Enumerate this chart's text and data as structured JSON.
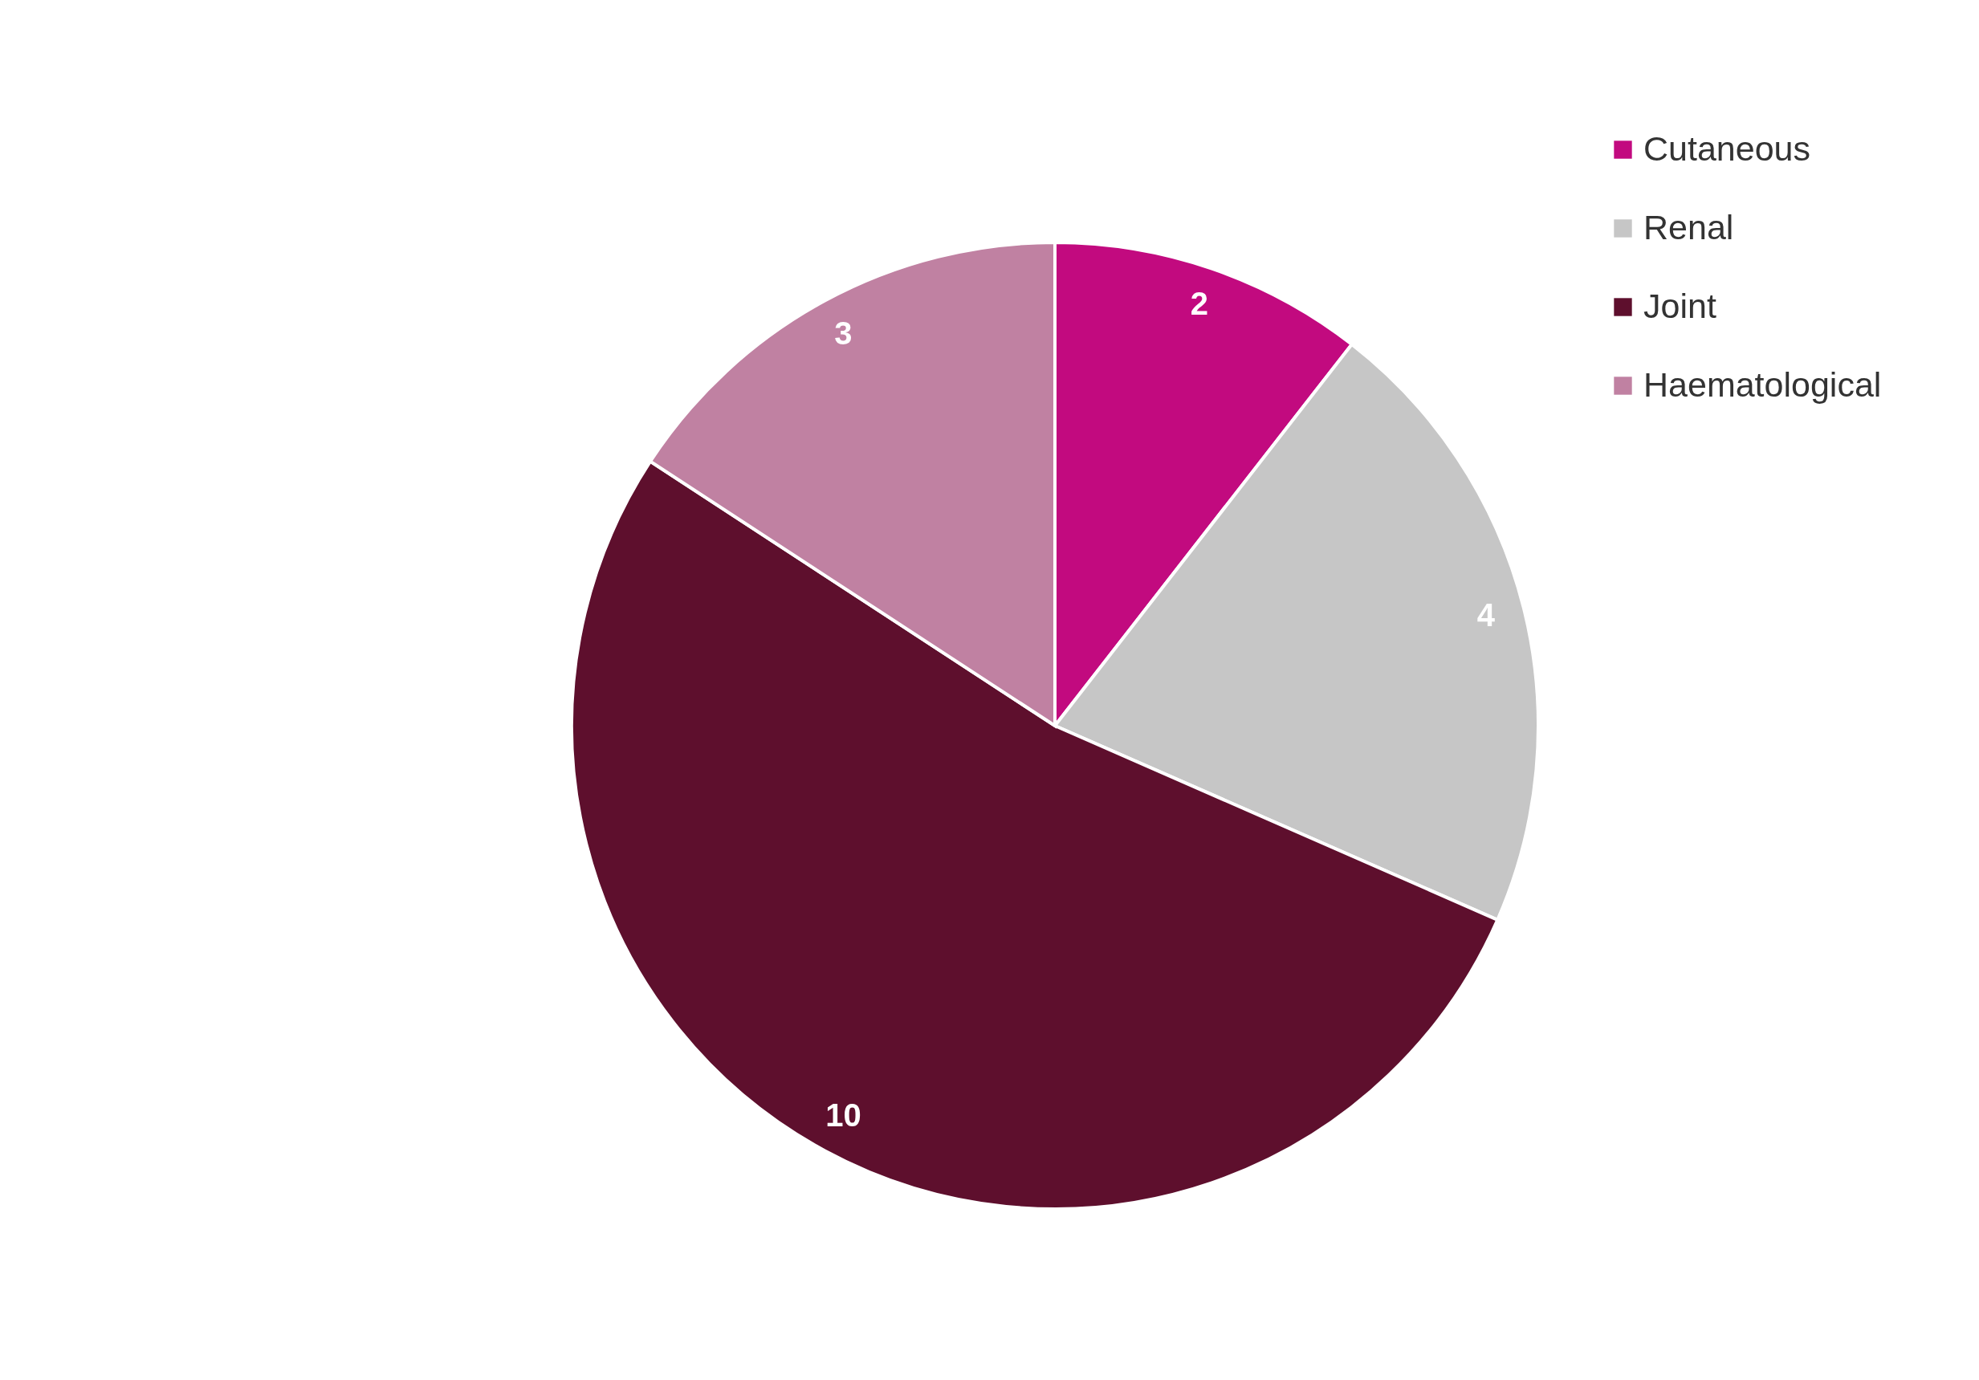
{
  "chart_data": {
    "type": "pie",
    "categories": [
      "Cutaneous",
      "Renal",
      "Joint",
      "Haematological"
    ],
    "values": [
      2,
      4,
      10,
      3
    ],
    "colors": [
      "#c20a7f",
      "#c6c6c6",
      "#5e0f2d",
      "#c081a2"
    ],
    "data_labels": true,
    "legend": "top right"
  }
}
